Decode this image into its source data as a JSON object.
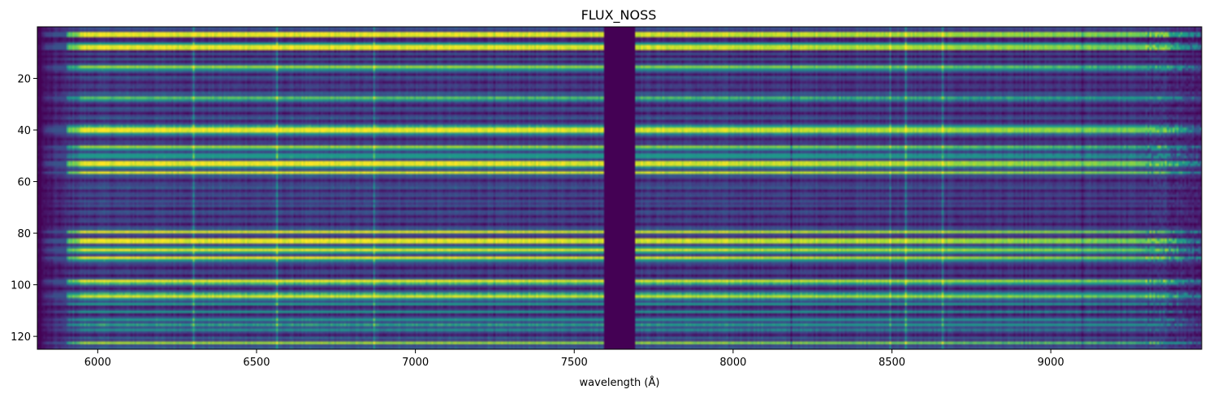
{
  "chart_data": {
    "type": "heatmap",
    "title": "FLUX_NOSS",
    "xlabel": "wavelength (Å)",
    "ylabel": "",
    "xlim": [
      5810,
      9475
    ],
    "ylim": [
      125,
      0
    ],
    "xticks": [
      6000,
      6500,
      7000,
      7500,
      8000,
      8500,
      9000
    ],
    "yticks": [
      20,
      40,
      60,
      80,
      100,
      120
    ],
    "colormap": "viridis",
    "rows": 125,
    "masked_band": [
      7596,
      7692
    ],
    "band_edges": [
      5810,
      5835,
      5870,
      5910,
      5950,
      9300,
      9440,
      9475
    ],
    "band_factors": [
      0.05,
      0.25,
      0.5,
      0.8,
      1.0,
      0.8,
      0.45
    ],
    "bright_rows": [
      {
        "row": 2,
        "level": 0.97
      },
      {
        "row": 3,
        "level": 0.95
      },
      {
        "row": 6,
        "level": 0.6
      },
      {
        "row": 7,
        "level": 0.97
      },
      {
        "row": 8,
        "level": 0.95
      },
      {
        "row": 15,
        "level": 0.85
      },
      {
        "row": 16,
        "level": 0.6
      },
      {
        "row": 27,
        "level": 0.75
      },
      {
        "row": 28,
        "level": 0.5
      },
      {
        "row": 38,
        "level": 0.65
      },
      {
        "row": 39,
        "level": 0.97
      },
      {
        "row": 40,
        "level": 0.97
      },
      {
        "row": 41,
        "level": 0.5
      },
      {
        "row": 46,
        "level": 0.85
      },
      {
        "row": 47,
        "level": 0.55
      },
      {
        "row": 49,
        "level": 0.55
      },
      {
        "row": 50,
        "level": 0.6
      },
      {
        "row": 52,
        "level": 0.97
      },
      {
        "row": 53,
        "level": 0.97
      },
      {
        "row": 54,
        "level": 0.5
      },
      {
        "row": 56,
        "level": 0.95
      },
      {
        "row": 79,
        "level": 0.95
      },
      {
        "row": 82,
        "level": 0.97
      },
      {
        "row": 83,
        "level": 0.95
      },
      {
        "row": 85,
        "level": 0.55
      },
      {
        "row": 86,
        "level": 0.97
      },
      {
        "row": 87,
        "level": 0.6
      },
      {
        "row": 89,
        "level": 0.97
      },
      {
        "row": 90,
        "level": 0.6
      },
      {
        "row": 98,
        "level": 0.97
      },
      {
        "row": 99,
        "level": 0.7
      },
      {
        "row": 103,
        "level": 0.7
      },
      {
        "row": 104,
        "level": 0.95
      },
      {
        "row": 105,
        "level": 0.5
      },
      {
        "row": 107,
        "level": 0.6
      },
      {
        "row": 110,
        "level": 0.55
      },
      {
        "row": 113,
        "level": 0.6
      },
      {
        "row": 115,
        "level": 0.65
      },
      {
        "row": 117,
        "level": 0.5
      },
      {
        "row": 122,
        "level": 0.85
      }
    ],
    "dark_rows": [
      4,
      5,
      9,
      11,
      13,
      18,
      21,
      24,
      30,
      33,
      36,
      43,
      59,
      63,
      66,
      70,
      73,
      76,
      93,
      96,
      101,
      108,
      111,
      119
    ],
    "line_columns": [
      {
        "x": 6300,
        "level": 0.18
      },
      {
        "x": 6563,
        "level": 0.22
      },
      {
        "x": 6867,
        "level": 0.18
      },
      {
        "x": 6870,
        "level": 0.15
      },
      {
        "x": 7250,
        "level": -0.1
      },
      {
        "x": 8185,
        "level": -0.12
      },
      {
        "x": 8498,
        "level": 0.15
      },
      {
        "x": 8542,
        "level": 0.2
      },
      {
        "x": 8662,
        "level": 0.18
      },
      {
        "x": 8920,
        "level": -0.1
      },
      {
        "x": 9100,
        "level": -0.1
      }
    ]
  }
}
